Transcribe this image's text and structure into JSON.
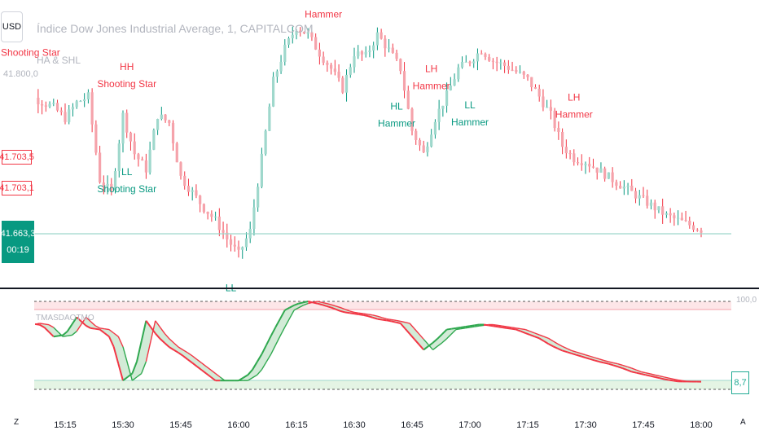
{
  "header": {
    "currency_button": "USD",
    "title": "Índice Dow Jones Industrial Average, 1, CAPITALCOM",
    "indicator_name": "HA & SHL",
    "price_level": "41.800,0"
  },
  "price_tags": {
    "tag1": "41.703,5",
    "tag2": "41.703,1",
    "current_price": "41.663,3",
    "countdown": "00:19"
  },
  "oscillator": {
    "name": "TMASDAOTMO",
    "upper_label": "100,0",
    "current_value": "8,7"
  },
  "time_axis": {
    "ticks": [
      "15:15",
      "15:30",
      "15:45",
      "16:00",
      "16:15",
      "16:30",
      "16:45",
      "17:00",
      "17:15",
      "17:30",
      "17:45",
      "18:00"
    ],
    "left_button": "Z",
    "right_button": "A"
  },
  "colors": {
    "up": "#9fd8cc",
    "down": "#f5a3ab",
    "wick_up": "#089981",
    "wick_down": "#f23645",
    "osc_green": "#2fa84f",
    "osc_red": "#f23645",
    "label_red": "#f23645",
    "label_teal": "#089981"
  },
  "chart_data": [
    {
      "type": "candlestick",
      "title": "Índice Dow Jones Industrial Average, 1, CAPITALCOM",
      "x_labels": [
        "15:15",
        "15:30",
        "15:45",
        "16:00",
        "16:15",
        "16:30",
        "16:45",
        "17:00",
        "17:15",
        "17:30",
        "17:45",
        "18:00"
      ],
      "current_price": 41663.3,
      "annotations": [
        {
          "lines": [
            "Shooting Star"
          ],
          "time": "15:06",
          "color": "red"
        },
        {
          "lines": [
            "HH",
            "Shooting Star"
          ],
          "time": "15:31",
          "color": "red"
        },
        {
          "lines": [
            "LL",
            "Shooting Star"
          ],
          "time": "15:31",
          "color": "teal"
        },
        {
          "lines": [
            "LL"
          ],
          "time": "15:58",
          "color": "teal"
        },
        {
          "lines": [
            "Hammer"
          ],
          "time": "16:22",
          "color": "red"
        },
        {
          "lines": [
            "HL",
            "Hammer"
          ],
          "time": "16:41",
          "color": "teal"
        },
        {
          "lines": [
            "LH",
            "Hammer"
          ],
          "time": "16:50",
          "color": "red"
        },
        {
          "lines": [
            "LL",
            "Hammer"
          ],
          "time": "17:00",
          "color": "teal"
        },
        {
          "lines": [
            "LH",
            "Hammer"
          ],
          "time": "17:27",
          "color": "red"
        }
      ],
      "price_path": [
        [
          15.0,
          41755
        ],
        [
          15.1,
          41752
        ],
        [
          15.2,
          41745
        ],
        [
          15.25,
          41738
        ],
        [
          15.3,
          41748
        ],
        [
          15.35,
          41752
        ],
        [
          15.4,
          41698
        ],
        [
          15.45,
          41690
        ],
        [
          15.5,
          41740
        ],
        [
          15.55,
          41715
        ],
        [
          15.6,
          41705
        ],
        [
          15.65,
          41740
        ],
        [
          15.7,
          41735
        ],
        [
          15.75,
          41700
        ],
        [
          15.8,
          41690
        ],
        [
          15.85,
          41680
        ],
        [
          15.9,
          41672
        ],
        [
          15.95,
          41660
        ],
        [
          16.0,
          41650
        ],
        [
          16.05,
          41665
        ],
        [
          16.1,
          41712
        ],
        [
          16.15,
          41762
        ],
        [
          16.2,
          41783
        ],
        [
          16.25,
          41797
        ],
        [
          16.3,
          41792
        ],
        [
          16.35,
          41780
        ],
        [
          16.4,
          41770
        ],
        [
          16.45,
          41757
        ],
        [
          16.5,
          41780
        ],
        [
          16.55,
          41778
        ],
        [
          16.6,
          41792
        ],
        [
          16.65,
          41782
        ],
        [
          16.7,
          41770
        ],
        [
          16.75,
          41730
        ],
        [
          16.8,
          41715
        ],
        [
          16.85,
          41738
        ],
        [
          16.9,
          41753
        ],
        [
          16.95,
          41770
        ],
        [
          17.0,
          41775
        ],
        [
          17.05,
          41782
        ],
        [
          17.1,
          41775
        ],
        [
          17.15,
          41772
        ],
        [
          17.2,
          41768
        ],
        [
          17.25,
          41763
        ],
        [
          17.3,
          41752
        ],
        [
          17.35,
          41740
        ],
        [
          17.4,
          41720
        ],
        [
          17.45,
          41712
        ],
        [
          17.5,
          41710
        ],
        [
          17.55,
          41705
        ],
        [
          17.6,
          41700
        ],
        [
          17.65,
          41695
        ],
        [
          17.7,
          41690
        ],
        [
          17.75,
          41685
        ],
        [
          17.8,
          41680
        ],
        [
          17.85,
          41675
        ],
        [
          17.9,
          41672
        ],
        [
          17.95,
          41669
        ],
        [
          18.0,
          41666
        ]
      ]
    },
    {
      "type": "line",
      "title": "TMASDAOTMO",
      "ylim": [
        0,
        100
      ],
      "current_value": 8.7,
      "series": [
        {
          "values": [
            [
              15.0,
              70
            ],
            [
              15.1,
              75
            ],
            [
              15.15,
              73
            ],
            [
              15.2,
              60
            ],
            [
              15.25,
              62
            ],
            [
              15.3,
              82
            ],
            [
              15.35,
              70
            ],
            [
              15.4,
              68
            ],
            [
              15.45,
              58
            ],
            [
              15.5,
              10
            ],
            [
              15.55,
              20
            ],
            [
              15.6,
              78
            ],
            [
              15.65,
              60
            ],
            [
              15.7,
              48
            ],
            [
              15.75,
              40
            ],
            [
              15.8,
              30
            ],
            [
              15.85,
              20
            ],
            [
              15.9,
              10
            ],
            [
              15.95,
              10
            ],
            [
              16.0,
              10
            ],
            [
              16.05,
              18
            ],
            [
              16.1,
              40
            ],
            [
              16.15,
              66
            ],
            [
              16.2,
              90
            ],
            [
              16.25,
              97
            ],
            [
              16.3,
              100
            ],
            [
              16.35,
              97
            ],
            [
              16.4,
              93
            ],
            [
              16.45,
              88
            ],
            [
              16.5,
              86
            ],
            [
              16.55,
              84
            ],
            [
              16.6,
              80
            ],
            [
              16.65,
              78
            ],
            [
              16.7,
              75
            ],
            [
              16.75,
              60
            ],
            [
              16.8,
              45
            ],
            [
              16.85,
              55
            ],
            [
              16.9,
              68
            ],
            [
              16.95,
              70
            ],
            [
              17.0,
              72
            ],
            [
              17.05,
              74
            ],
            [
              17.1,
              72
            ],
            [
              17.15,
              70
            ],
            [
              17.2,
              68
            ],
            [
              17.25,
              63
            ],
            [
              17.3,
              58
            ],
            [
              17.35,
              50
            ],
            [
              17.4,
              44
            ],
            [
              17.45,
              40
            ],
            [
              17.5,
              36
            ],
            [
              17.55,
              32
            ],
            [
              17.6,
              29
            ],
            [
              17.65,
              25
            ],
            [
              17.7,
              20
            ],
            [
              17.75,
              17
            ],
            [
              17.8,
              14
            ],
            [
              17.85,
              11
            ],
            [
              17.9,
              9
            ],
            [
              18.0,
              8.7
            ]
          ]
        }
      ]
    }
  ]
}
